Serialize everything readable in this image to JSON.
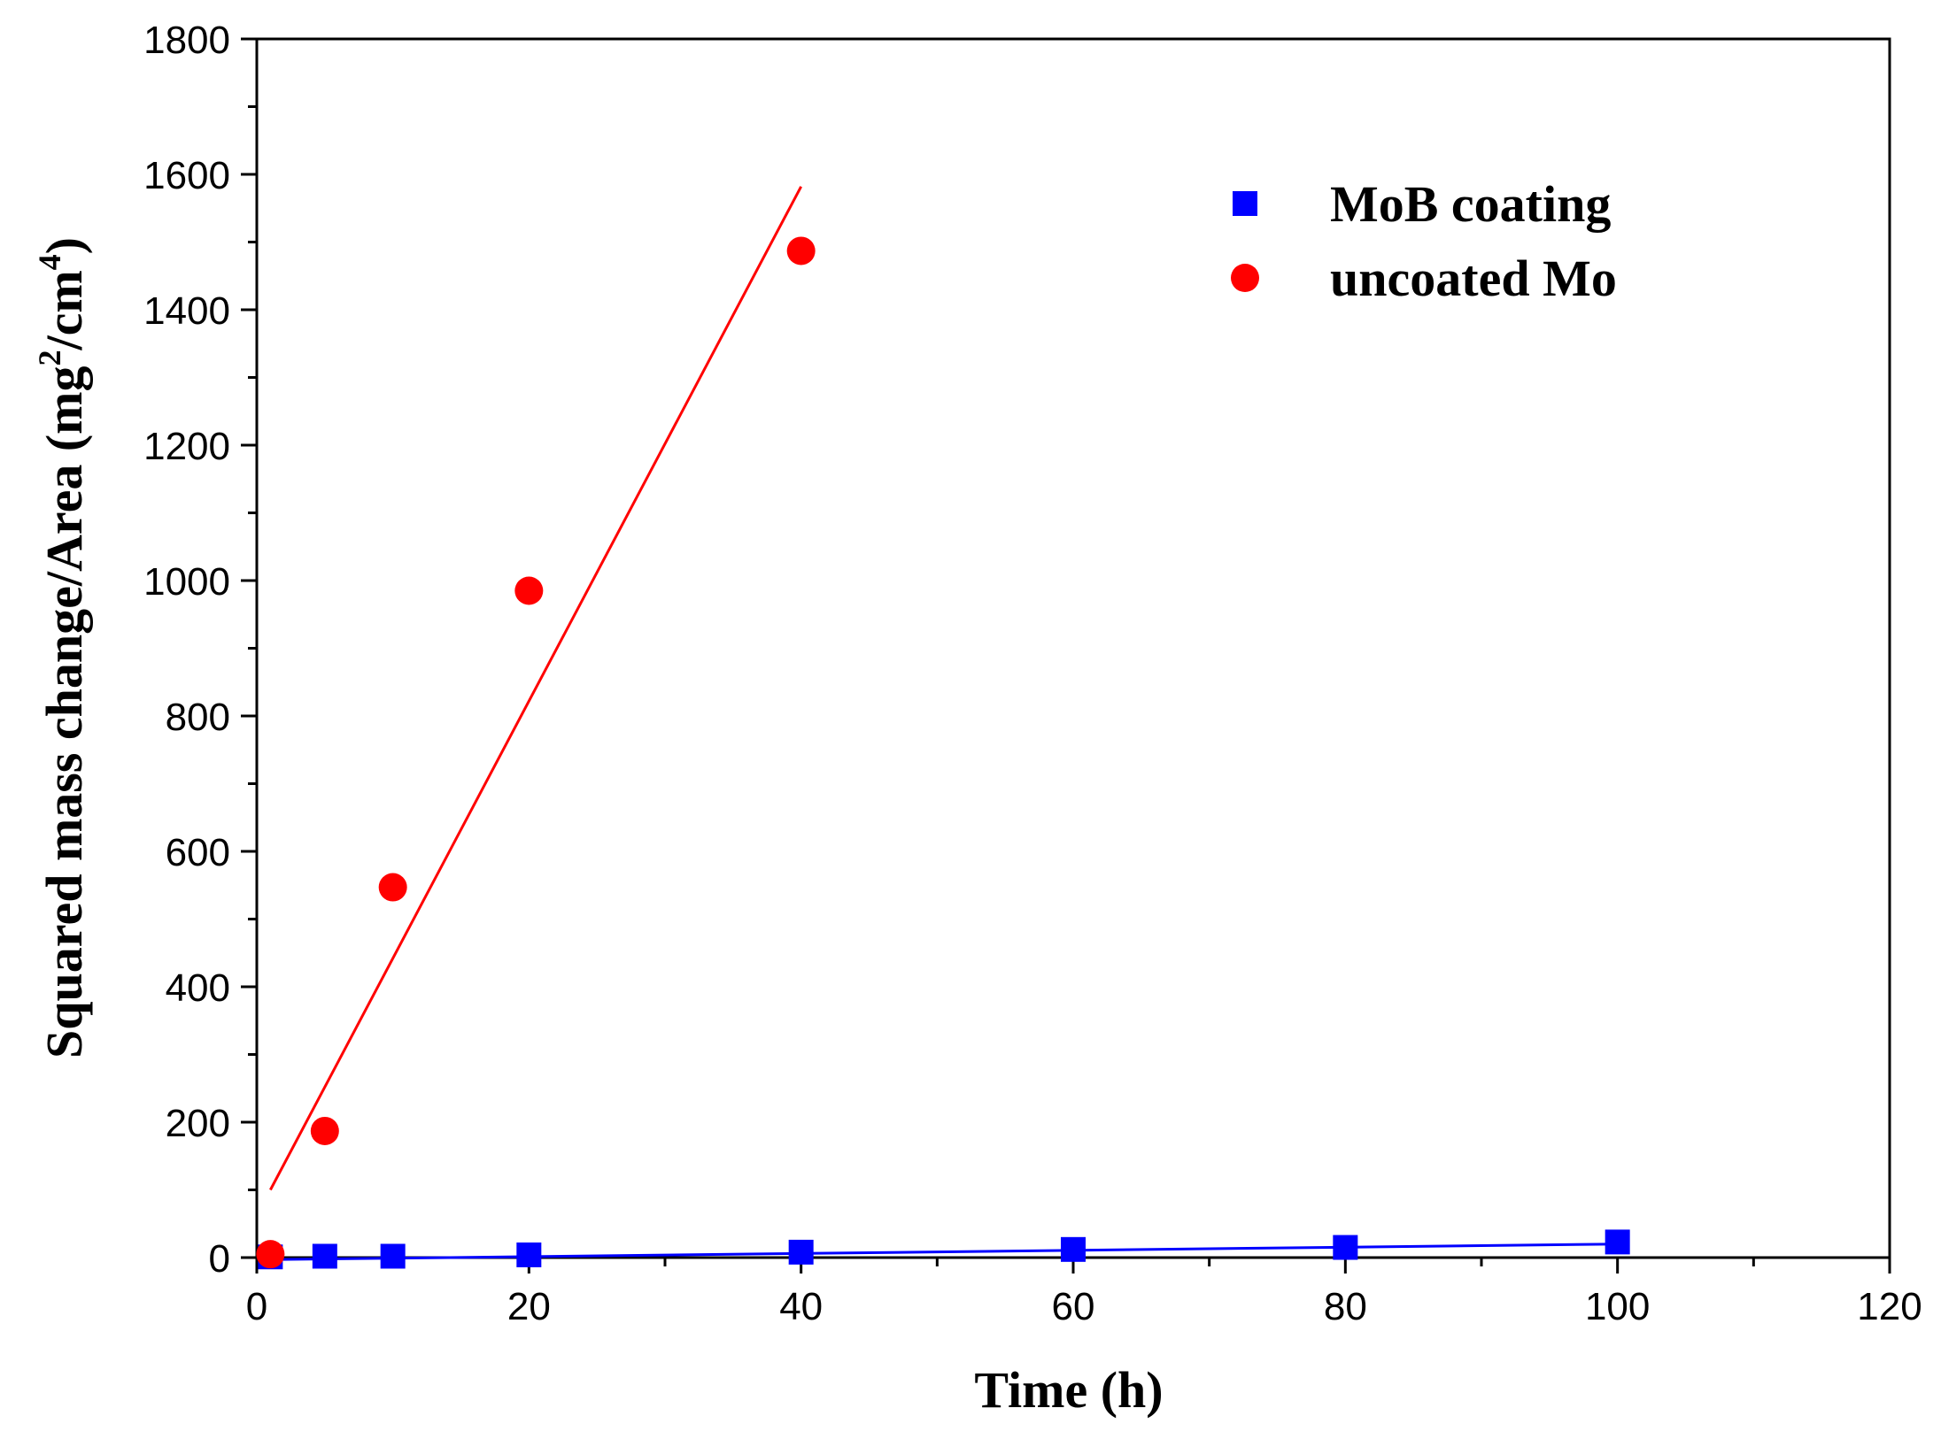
{
  "chart_data": {
    "type": "scatter",
    "xlabel": "Time (h)",
    "ylabel": {
      "main": "Squared mass change/Area (mg",
      "sup1": "2",
      "middle": "/cm",
      "sup2": "4",
      "end": ")"
    },
    "xlim": [
      0,
      120
    ],
    "ylim": [
      0,
      1800
    ],
    "xticks": [
      0,
      20,
      40,
      60,
      80,
      100,
      120
    ],
    "yticks": [
      0,
      200,
      400,
      600,
      800,
      1000,
      1200,
      1400,
      1600,
      1800
    ],
    "grid": false,
    "legend_position": "top-right",
    "series": [
      {
        "name": "MoB coating",
        "marker": "square",
        "color": "#0000ff",
        "x": [
          1,
          5,
          10,
          20,
          40,
          60,
          80,
          100
        ],
        "y": [
          1,
          2,
          2,
          4,
          8,
          12,
          15,
          23
        ],
        "fit_line": {
          "x": [
            1,
            100
          ],
          "y": [
            -3,
            20
          ]
        }
      },
      {
        "name": "uncoated Mo",
        "marker": "circle",
        "color": "#ff0000",
        "x": [
          1,
          5,
          10,
          20,
          40
        ],
        "y": [
          5,
          187,
          547,
          985,
          1487
        ],
        "fit_line": {
          "x": [
            1,
            40
          ],
          "y": [
            100,
            1582
          ]
        }
      }
    ]
  }
}
